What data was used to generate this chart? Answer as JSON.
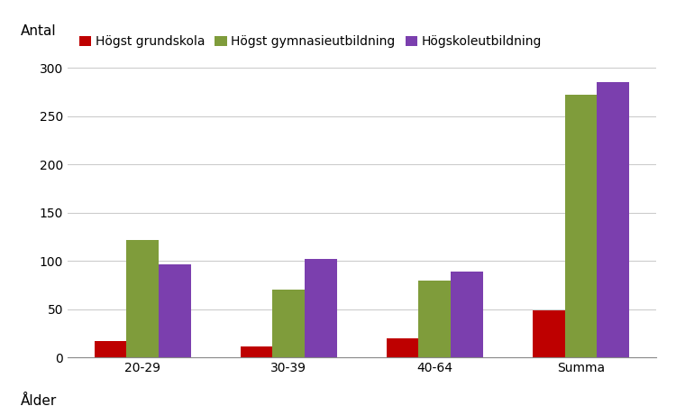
{
  "categories": [
    "20-29",
    "30-39",
    "40-64",
    "Summa"
  ],
  "series": [
    {
      "label": "Högst grundskola",
      "color": "#BE0000",
      "values": [
        17,
        11,
        20,
        49
      ]
    },
    {
      "label": "Högst gymnasieutbildning",
      "color": "#7F9C3B",
      "values": [
        122,
        70,
        80,
        272
      ]
    },
    {
      "label": "Högskoleutbildning",
      "color": "#7B3FAE",
      "values": [
        96,
        102,
        89,
        285
      ]
    }
  ],
  "ylabel": "Antal",
  "xlabel": "Ålder",
  "ylim": [
    0,
    320
  ],
  "yticks": [
    0,
    50,
    100,
    150,
    200,
    250,
    300
  ],
  "bar_width": 0.22,
  "background_color": "#FFFFFF",
  "grid_color": "#CCCCCC",
  "axis_fontsize": 11,
  "tick_fontsize": 10,
  "legend_fontsize": 10
}
